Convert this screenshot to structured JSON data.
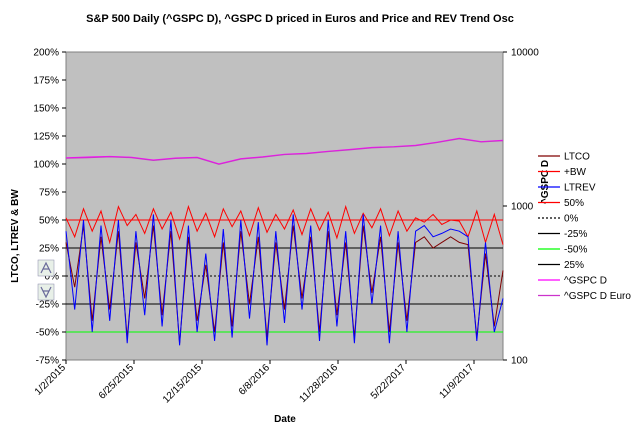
{
  "chart_data": {
    "type": "line",
    "title": "S&P 500 Daily (^GSPC D), ^GSPC D priced in Euros and Price and REV Trend Osc",
    "xlabel": "Date",
    "ylabel_left": "LTCO, LTREV & BW",
    "ylabel_right": "^GSPC D",
    "x_ticks": [
      "1/2/2015",
      "6/25/2015",
      "12/15/2015",
      "6/8/2016",
      "11/28/2016",
      "5/22/2017",
      "11/9/2017"
    ],
    "x_range": [
      "2015-01-02",
      "2018-04-20"
    ],
    "left_axis": {
      "ylim": [
        -75,
        200
      ],
      "ticks": [
        "200%",
        "175%",
        "150%",
        "125%",
        "100%",
        "75%",
        "50%",
        "25%",
        "0%",
        "-25%",
        "-50%",
        "-75%"
      ],
      "tick_values": [
        200,
        175,
        150,
        125,
        100,
        75,
        50,
        25,
        0,
        -25,
        -50,
        -75
      ]
    },
    "right_axis": {
      "scale": "log",
      "ylim": [
        100,
        10000
      ],
      "ticks": [
        "10000",
        "1000",
        "100"
      ],
      "tick_values": [
        10000,
        1000,
        100
      ]
    },
    "grid": false,
    "legend_position": "right",
    "reference_lines": [
      {
        "name": "50%",
        "value": 50,
        "color": "#ff0000",
        "style": "solid"
      },
      {
        "name": "0%",
        "value": 0,
        "color": "#000000",
        "style": "dotted"
      },
      {
        "name": "-25%",
        "value": -25,
        "color": "#000000",
        "style": "solid"
      },
      {
        "name": "-50%",
        "value": -50,
        "color": "#00ff00",
        "style": "solid"
      },
      {
        "name": "25%",
        "value": 25,
        "color": "#000000",
        "style": "solid"
      }
    ],
    "series": [
      {
        "name": "LTCO",
        "color": "#800000",
        "axis": "left",
        "x": [
          0,
          0.02,
          0.04,
          0.06,
          0.08,
          0.1,
          0.12,
          0.14,
          0.16,
          0.18,
          0.2,
          0.22,
          0.24,
          0.26,
          0.28,
          0.3,
          0.32,
          0.34,
          0.36,
          0.38,
          0.4,
          0.42,
          0.44,
          0.46,
          0.48,
          0.5,
          0.52,
          0.54,
          0.56,
          0.58,
          0.6,
          0.62,
          0.64,
          0.66,
          0.68,
          0.7,
          0.72,
          0.74,
          0.76,
          0.78,
          0.8,
          0.82,
          0.84,
          0.86,
          0.88,
          0.9,
          0.92,
          0.94,
          0.96,
          0.98,
          1
        ],
        "values": [
          30,
          -10,
          45,
          -40,
          35,
          -30,
          40,
          -55,
          30,
          -20,
          45,
          -35,
          40,
          -60,
          35,
          -40,
          10,
          -50,
          30,
          -45,
          40,
          -25,
          35,
          -55,
          30,
          -30,
          45,
          -20,
          35,
          -50,
          40,
          -35,
          30,
          -55,
          45,
          -15,
          35,
          -50,
          30,
          -40,
          30,
          35,
          25,
          30,
          35,
          30,
          28,
          -55,
          20,
          -45,
          5
        ]
      },
      {
        "name": "+BW",
        "color": "#ff0000",
        "axis": "left",
        "x": [
          0,
          0.02,
          0.04,
          0.06,
          0.08,
          0.1,
          0.12,
          0.14,
          0.16,
          0.18,
          0.2,
          0.22,
          0.24,
          0.26,
          0.28,
          0.3,
          0.32,
          0.34,
          0.36,
          0.38,
          0.4,
          0.42,
          0.44,
          0.46,
          0.48,
          0.5,
          0.52,
          0.54,
          0.56,
          0.58,
          0.6,
          0.62,
          0.64,
          0.66,
          0.68,
          0.7,
          0.72,
          0.74,
          0.76,
          0.78,
          0.8,
          0.82,
          0.84,
          0.86,
          0.88,
          0.9,
          0.92,
          0.94,
          0.96,
          0.98,
          1
        ],
        "values": [
          52,
          35,
          60,
          40,
          58,
          30,
          62,
          45,
          55,
          38,
          60,
          42,
          57,
          33,
          62,
          40,
          56,
          35,
          60,
          44,
          58,
          36,
          61,
          39,
          55,
          42,
          59,
          37,
          60,
          41,
          57,
          34,
          62,
          38,
          56,
          43,
          60,
          36,
          58,
          40,
          52,
          48,
          55,
          46,
          50,
          49,
          35,
          58,
          30,
          55,
          28
        ]
      },
      {
        "name": "LTREV",
        "color": "#0000ff",
        "axis": "left",
        "x": [
          0,
          0.02,
          0.04,
          0.06,
          0.08,
          0.1,
          0.12,
          0.14,
          0.16,
          0.18,
          0.2,
          0.22,
          0.24,
          0.26,
          0.28,
          0.3,
          0.32,
          0.34,
          0.36,
          0.38,
          0.4,
          0.42,
          0.44,
          0.46,
          0.48,
          0.5,
          0.52,
          0.54,
          0.56,
          0.58,
          0.6,
          0.62,
          0.64,
          0.66,
          0.68,
          0.7,
          0.72,
          0.74,
          0.76,
          0.78,
          0.8,
          0.82,
          0.84,
          0.86,
          0.88,
          0.9,
          0.92,
          0.94,
          0.96,
          0.98,
          1
        ],
        "values": [
          40,
          -30,
          50,
          -50,
          45,
          -40,
          50,
          -60,
          40,
          -35,
          55,
          -45,
          50,
          -62,
          45,
          -50,
          20,
          -58,
          42,
          -55,
          50,
          -38,
          48,
          -62,
          40,
          -42,
          55,
          -30,
          45,
          -58,
          50,
          -45,
          40,
          -60,
          55,
          -25,
          45,
          -60,
          40,
          -50,
          40,
          45,
          35,
          38,
          42,
          40,
          35,
          -58,
          30,
          -50,
          -20
        ]
      },
      {
        "name": "^GSPC D",
        "color": "#ff00ff",
        "axis": "right",
        "x": [
          0,
          0.05,
          0.1,
          0.15,
          0.2,
          0.25,
          0.3,
          0.35,
          0.4,
          0.45,
          0.5,
          0.55,
          0.6,
          0.65,
          0.7,
          0.75,
          0.8,
          0.85,
          0.9,
          0.95,
          1
        ],
        "values": [
          2058,
          2080,
          2100,
          2075,
          1990,
          2050,
          2070,
          1880,
          2030,
          2090,
          2170,
          2200,
          2270,
          2330,
          2400,
          2430,
          2480,
          2600,
          2750,
          2620,
          2670
        ]
      },
      {
        "name": "^GSPC D Euro",
        "color": "#cc33cc",
        "axis": "right",
        "x": [
          0,
          0.05,
          0.1,
          0.15,
          0.2,
          0.25,
          0.3,
          0.35,
          0.4,
          0.45,
          0.5,
          0.55,
          0.6,
          0.65,
          0.7,
          0.75,
          0.8,
          0.85,
          0.9,
          0.95,
          1
        ],
        "values": [
          2040,
          2060,
          2085,
          2060,
          1975,
          2035,
          2055,
          1865,
          2015,
          2075,
          2155,
          2185,
          2255,
          2315,
          2385,
          2415,
          2465,
          2585,
          2735,
          2605,
          2655
        ]
      }
    ]
  }
}
